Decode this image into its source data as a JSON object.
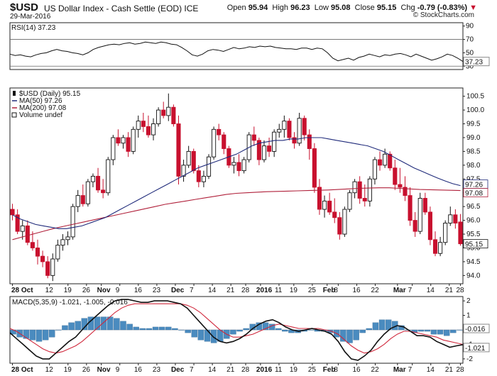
{
  "header": {
    "symbol": "$USD",
    "name": "US Dollar Index - Cash Settle (EOD)",
    "exchange": "ICE",
    "date": "29-Mar-2016",
    "open_label": "Open",
    "open": "95.94",
    "high_label": "High",
    "high": "96.23",
    "low_label": "Low",
    "low": "95.08",
    "close_label": "Close",
    "close": "95.15",
    "chg_label": "Chg",
    "chg": "-0.79 (-0.83%)",
    "chg_icon": "down-triangle-icon",
    "logo": "© StockCharts.com"
  },
  "chart_data": [
    {
      "type": "line",
      "panel": "rsi",
      "title": "RSI(14) 37.23",
      "ylim": [
        25,
        95
      ],
      "ticks": [
        "90",
        "70",
        "50",
        "30"
      ],
      "guides": [
        70,
        30
      ],
      "last_label": "37.23",
      "series": [
        {
          "name": "RSI(14)",
          "color": "#111111",
          "values": [
            48,
            46,
            47,
            45,
            44,
            47,
            49,
            50,
            53,
            55,
            53,
            52,
            50,
            49,
            47,
            50,
            55,
            58,
            60,
            62,
            63,
            62,
            64,
            65,
            63,
            64,
            66,
            65,
            64,
            66,
            65,
            63,
            62,
            58,
            53,
            47,
            45,
            48,
            53,
            55,
            54,
            52,
            55,
            58,
            56,
            57,
            59,
            58,
            60,
            59,
            60,
            58,
            57,
            56,
            56,
            55,
            57,
            57,
            55,
            57,
            56,
            50,
            42,
            38,
            40,
            42,
            39,
            43,
            45,
            48,
            46,
            44,
            47,
            46,
            48,
            49,
            47,
            44,
            48,
            45,
            42,
            39,
            41,
            44,
            48,
            46,
            42,
            37
          ]
        }
      ]
    },
    {
      "type": "candlestick",
      "panel": "price",
      "title": "$USD (Daily) 95.15",
      "x_labels": [
        "28 Oct",
        "12",
        "19",
        "26",
        "Nov",
        "9",
        "16",
        "23",
        "Dec",
        "7",
        "14",
        "21",
        "28",
        "2016",
        "11",
        "19",
        "25",
        "Feb",
        "8",
        "16",
        "22",
        "Mar",
        "7",
        "14",
        "21",
        "28"
      ],
      "ylim": [
        93.7,
        100.8
      ],
      "ticks": [
        "100.5",
        "100.0",
        "99.5",
        "99.0",
        "98.5",
        "98.0",
        "97.5",
        "97.0",
        "96.5",
        "96.0",
        "95.5",
        "95.0",
        "94.5",
        "94.0"
      ],
      "last_labels": [
        {
          "text": "97.26",
          "color": "#1f2a7a"
        },
        {
          "text": "97.08",
          "color": "#b0203a"
        },
        {
          "text": "95.15",
          "color": "#111111"
        }
      ],
      "legend": [
        {
          "text": "$USD (Daily) 95.15",
          "color": "#111111",
          "icon": "candle-icon"
        },
        {
          "text": "MA(50) 97.26",
          "color": "#1f2a7a",
          "icon": "line-swatch-icon"
        },
        {
          "text": "MA(200) 97.08",
          "color": "#b0203a",
          "icon": "line-swatch-icon"
        },
        {
          "text": "Volume undef",
          "color": "#111111",
          "icon": "bars-icon"
        }
      ],
      "ohlc": [
        [
          96.4,
          96.6,
          96.0,
          96.2
        ],
        [
          96.2,
          96.4,
          95.5,
          95.6
        ],
        [
          95.6,
          96.0,
          95.3,
          95.8
        ],
        [
          95.8,
          96.0,
          95.1,
          95.2
        ],
        [
          95.2,
          95.6,
          94.9,
          95.0
        ],
        [
          95.0,
          95.3,
          94.4,
          94.7
        ],
        [
          94.7,
          94.9,
          94.3,
          94.5
        ],
        [
          94.5,
          94.7,
          93.9,
          94.0
        ],
        [
          94.0,
          94.8,
          93.8,
          94.6
        ],
        [
          94.6,
          95.3,
          94.5,
          95.1
        ],
        [
          95.1,
          95.5,
          94.9,
          95.3
        ],
        [
          95.3,
          95.6,
          95.1,
          95.4
        ],
        [
          95.4,
          96.6,
          95.3,
          96.5
        ],
        [
          96.5,
          97.1,
          96.3,
          96.9
        ],
        [
          96.9,
          97.3,
          96.5,
          96.6
        ],
        [
          96.6,
          97.5,
          96.5,
          97.4
        ],
        [
          97.4,
          97.7,
          97.2,
          97.6
        ],
        [
          97.6,
          97.9,
          97.0,
          97.1
        ],
        [
          97.1,
          97.5,
          96.8,
          97.0
        ],
        [
          97.0,
          98.3,
          96.9,
          98.2
        ],
        [
          98.2,
          99.1,
          98.0,
          99.0
        ],
        [
          99.0,
          99.3,
          98.7,
          98.8
        ],
        [
          98.8,
          99.1,
          98.6,
          99.0
        ],
        [
          99.0,
          99.2,
          98.3,
          98.5
        ],
        [
          98.5,
          99.4,
          98.4,
          99.3
        ],
        [
          99.3,
          99.8,
          99.0,
          99.6
        ],
        [
          99.6,
          99.9,
          99.2,
          99.4
        ],
        [
          99.4,
          99.8,
          99.0,
          99.1
        ],
        [
          99.1,
          99.7,
          98.9,
          99.5
        ],
        [
          99.5,
          100.1,
          99.4,
          100.0
        ],
        [
          100.0,
          100.3,
          99.7,
          99.8
        ],
        [
          99.8,
          100.6,
          99.6,
          100.1
        ],
        [
          100.1,
          100.2,
          99.4,
          99.5
        ],
        [
          99.5,
          99.8,
          97.3,
          97.6
        ],
        [
          97.6,
          98.2,
          97.4,
          98.0
        ],
        [
          98.0,
          98.7,
          97.9,
          98.5
        ],
        [
          98.5,
          98.6,
          97.7,
          97.8
        ],
        [
          97.8,
          98.0,
          97.2,
          97.4
        ],
        [
          97.4,
          97.8,
          97.2,
          97.6
        ],
        [
          97.6,
          98.4,
          97.5,
          98.3
        ],
        [
          98.3,
          99.4,
          98.2,
          99.3
        ],
        [
          99.3,
          99.5,
          98.9,
          99.1
        ],
        [
          99.1,
          99.2,
          98.4,
          98.6
        ],
        [
          98.6,
          98.7,
          97.9,
          98.0
        ],
        [
          98.0,
          98.3,
          97.7,
          98.1
        ],
        [
          98.1,
          98.4,
          97.6,
          97.8
        ],
        [
          97.8,
          98.3,
          97.7,
          98.2
        ],
        [
          98.2,
          99.2,
          98.1,
          99.1
        ],
        [
          99.1,
          99.4,
          98.7,
          98.9
        ],
        [
          98.9,
          99.0,
          98.0,
          98.2
        ],
        [
          98.2,
          98.9,
          98.1,
          98.7
        ],
        [
          98.7,
          99.0,
          98.3,
          98.5
        ],
        [
          98.5,
          99.3,
          98.3,
          99.2
        ],
        [
          99.2,
          99.5,
          99.0,
          99.3
        ],
        [
          99.3,
          99.8,
          99.0,
          99.6
        ],
        [
          99.6,
          99.7,
          98.9,
          99.0
        ],
        [
          99.0,
          99.2,
          98.6,
          98.8
        ],
        [
          98.8,
          99.9,
          98.7,
          99.7
        ],
        [
          99.7,
          99.8,
          98.9,
          99.1
        ],
        [
          99.1,
          99.3,
          98.2,
          98.6
        ],
        [
          98.6,
          98.8,
          97.0,
          97.2
        ],
        [
          97.2,
          97.5,
          96.2,
          96.4
        ],
        [
          96.4,
          96.9,
          96.1,
          96.7
        ],
        [
          96.7,
          97.0,
          96.2,
          96.3
        ],
        [
          96.3,
          96.8,
          95.9,
          96.1
        ],
        [
          96.1,
          96.3,
          95.3,
          95.5
        ],
        [
          95.5,
          96.5,
          95.4,
          96.4
        ],
        [
          96.4,
          97.1,
          96.3,
          97.0
        ],
        [
          97.0,
          97.5,
          96.8,
          97.4
        ],
        [
          97.4,
          97.6,
          96.6,
          96.8
        ],
        [
          96.8,
          97.3,
          96.5,
          96.7
        ],
        [
          96.7,
          97.6,
          96.5,
          97.5
        ],
        [
          97.5,
          98.3,
          97.3,
          98.2
        ],
        [
          98.2,
          98.5,
          97.8,
          98.0
        ],
        [
          98.0,
          98.6,
          97.9,
          98.4
        ],
        [
          98.4,
          98.5,
          97.8,
          97.9
        ],
        [
          97.9,
          98.2,
          97.1,
          97.3
        ],
        [
          97.3,
          97.9,
          97.0,
          97.2
        ],
        [
          97.2,
          97.6,
          96.7,
          96.9
        ],
        [
          96.9,
          97.2,
          95.8,
          96.0
        ],
        [
          96.0,
          96.3,
          95.4,
          95.6
        ],
        [
          95.6,
          97.0,
          95.5,
          96.8
        ],
        [
          96.8,
          97.0,
          96.2,
          96.3
        ],
        [
          96.3,
          96.5,
          95.1,
          95.3
        ],
        [
          95.3,
          95.6,
          94.7,
          94.8
        ],
        [
          94.8,
          95.4,
          94.7,
          95.2
        ],
        [
          95.2,
          96.0,
          95.1,
          95.9
        ],
        [
          95.9,
          96.5,
          95.8,
          96.2
        ],
        [
          96.2,
          96.4,
          95.7,
          95.9
        ],
        [
          95.94,
          96.23,
          95.08,
          95.15
        ]
      ],
      "ma50": [
        96.2,
        96.05,
        95.95,
        95.85,
        95.8,
        95.75,
        95.7,
        95.7,
        95.75,
        95.8,
        95.9,
        96.0,
        96.1,
        96.25,
        96.4,
        96.55,
        96.7,
        96.85,
        97.0,
        97.15,
        97.3,
        97.45,
        97.6,
        97.75,
        97.9,
        98.0,
        98.1,
        98.2,
        98.3,
        98.4,
        98.55,
        98.7,
        98.8,
        98.85,
        98.9,
        98.9,
        98.95,
        98.95,
        99.0,
        99.0,
        99.0,
        98.95,
        98.9,
        98.85,
        98.8,
        98.75,
        98.7,
        98.6,
        98.5,
        98.35,
        98.2,
        98.05,
        97.9,
        97.78,
        97.66,
        97.54,
        97.43,
        97.33,
        97.26
      ],
      "ma50_start": 30,
      "ma200": [
        95.3,
        95.4,
        95.5,
        95.6,
        95.7,
        95.78,
        95.86,
        95.94,
        96.02,
        96.1,
        96.18,
        96.26,
        96.34,
        96.42,
        96.5,
        96.58,
        96.64,
        96.7,
        96.76,
        96.82,
        96.88,
        96.94,
        96.98,
        97.0,
        97.02,
        97.04,
        97.05,
        97.06,
        97.07,
        97.08,
        97.09,
        97.1,
        97.12,
        97.14,
        97.16,
        97.17,
        97.18,
        97.18,
        97.16,
        97.14,
        97.12,
        97.11,
        97.1,
        97.09,
        97.08
      ],
      "ma200_start": 44
    },
    {
      "type": "line",
      "panel": "macd",
      "title": "MACD(5,35,9) -1.021, -1.005, -0.016",
      "ylim": [
        -2.3,
        2.3
      ],
      "ticks": [
        "2",
        "1",
        "0",
        "-1",
        "-2"
      ],
      "last_labels": [
        {
          "text": "-0.016",
          "color": "#111111"
        },
        {
          "text": "-1.021",
          "color": "#111111"
        }
      ],
      "series": [
        {
          "name": "MACD(5,35,9)",
          "color": "#111111",
          "values": [
            -0.2,
            -0.6,
            -1.0,
            -1.4,
            -1.8,
            -2.0,
            -2.0,
            -1.6,
            -1.2,
            -0.8,
            -0.5,
            0.0,
            0.5,
            0.9,
            1.3,
            1.7,
            2.0,
            2.1,
            2.1,
            2.0,
            1.9,
            1.9,
            2.0,
            2.0,
            2.0,
            1.9,
            1.8,
            1.5,
            1.0,
            0.5,
            0.0,
            -0.5,
            -0.8,
            -0.9,
            -0.8,
            -0.6,
            -0.3,
            0.1,
            0.4,
            0.6,
            0.7,
            0.5,
            0.2,
            0.0,
            -0.1,
            0.0,
            0.1,
            0.0,
            -0.1,
            -0.3,
            -0.8,
            -1.5,
            -2.0,
            -2.1,
            -1.8,
            -1.4,
            -0.8,
            -0.3,
            0.1,
            0.3,
            0.2,
            -0.1,
            -0.4,
            -0.4,
            -0.5,
            -0.8,
            -1.0,
            -1.2,
            -1.1,
            -1.02
          ]
        },
        {
          "name": "Signal",
          "color": "#d0283c",
          "values": [
            0.1,
            -0.1,
            -0.4,
            -0.7,
            -1.0,
            -1.3,
            -1.5,
            -1.6,
            -1.5,
            -1.3,
            -1.1,
            -0.8,
            -0.4,
            0.0,
            0.4,
            0.8,
            1.2,
            1.5,
            1.7,
            1.8,
            1.8,
            1.8,
            1.8,
            1.8,
            1.8,
            1.8,
            1.8,
            1.7,
            1.5,
            1.2,
            0.8,
            0.4,
            0.0,
            -0.3,
            -0.5,
            -0.5,
            -0.4,
            -0.3,
            -0.1,
            0.1,
            0.3,
            0.4,
            0.3,
            0.2,
            0.1,
            0.1,
            0.1,
            0.1,
            0.0,
            -0.1,
            -0.3,
            -0.7,
            -1.1,
            -1.4,
            -1.6,
            -1.5,
            -1.3,
            -1.0,
            -0.6,
            -0.3,
            -0.1,
            -0.1,
            -0.2,
            -0.3,
            -0.4,
            -0.5,
            -0.7,
            -0.8,
            -0.9,
            -1.005
          ]
        },
        {
          "name": "Histogram",
          "color": "#4a8bbf",
          "values": [
            -0.3,
            -0.5,
            -0.6,
            -0.7,
            -0.8,
            -0.7,
            -0.5,
            0.0,
            0.3,
            0.5,
            0.6,
            0.8,
            0.9,
            0.9,
            0.9,
            0.9,
            0.8,
            0.6,
            0.4,
            0.2,
            0.1,
            0.1,
            0.2,
            0.2,
            0.2,
            0.1,
            0.0,
            -0.2,
            -0.5,
            -0.7,
            -0.8,
            -0.9,
            -0.8,
            -0.6,
            -0.3,
            -0.1,
            0.1,
            0.4,
            0.5,
            0.5,
            0.4,
            0.1,
            -0.1,
            -0.2,
            -0.2,
            -0.1,
            0.0,
            -0.1,
            -0.1,
            -0.2,
            -0.5,
            -0.8,
            -0.9,
            -0.7,
            -0.2,
            0.1,
            0.5,
            0.7,
            0.7,
            0.6,
            0.3,
            0.0,
            -0.2,
            -0.1,
            -0.1,
            -0.3,
            -0.3,
            -0.4,
            -0.2,
            -0.016
          ]
        }
      ]
    }
  ]
}
